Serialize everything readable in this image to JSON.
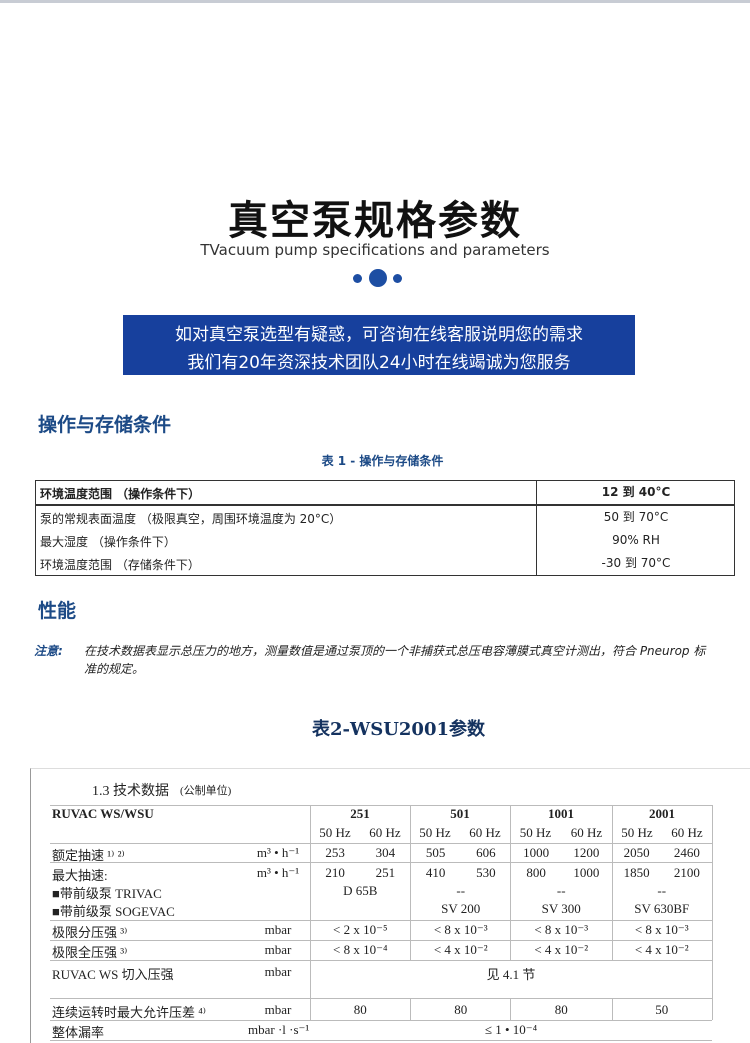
{
  "header": {
    "title": "真空泵规格参数",
    "subtitle": "TVacuum pump specifications and parameters"
  },
  "banner": {
    "lines": [
      "如对真空泵选型有疑惑，可咨询在线客服说明您的需求",
      "我们有20年资深技术团队24小时在线竭诚为您服务"
    ]
  },
  "section1": {
    "heading": "操作与存储条件",
    "table_caption": "表 1 - 操作与存储条件",
    "rows": [
      [
        "环境温度范围 （操作条件下）",
        "12 到 40°C"
      ],
      [
        "泵的常规表面温度 （极限真空，周围环境温度为 20°C）",
        "50 到 70°C"
      ],
      [
        "最大湿度 （操作条件下）",
        "90% RH"
      ],
      [
        "环境温度范围 （存储条件下）",
        "-30 到 70°C"
      ]
    ]
  },
  "section2": {
    "heading": "性能",
    "note_label": "注意:",
    "note_text": "在技术数据表显示总压力的地方，测量数值是通过泵顶的一个非捕获式总压电容薄膜式真空计测出，符合 Pneurop 标准的规定。"
  },
  "table2": {
    "title": "表2-WSU2001参数",
    "heading": "1.3  技术数据",
    "heading_note": "(公制单位)",
    "model_label": "RUVAC WS/WSU",
    "models": [
      "251",
      "501",
      "1001",
      "2001"
    ],
    "freqs": [
      "50 Hz",
      "60 Hz"
    ],
    "rows": [
      {
        "label": "额定抽速 ¹⁾ ²⁾",
        "unit": "m³ • h⁻¹",
        "cells": [
          "253",
          "304",
          "505",
          "606",
          "1000",
          "1200",
          "2050",
          "2460"
        ]
      },
      {
        "label": "最大抽速:",
        "unit": "m³ • h⁻¹",
        "cells": [
          "210",
          "251",
          "410",
          "530",
          "800",
          "1000",
          "1850",
          "2100"
        ]
      },
      {
        "label": "■带前级泵 TRIVAC",
        "unit": null,
        "cells": [
          "D 65B",
          "--",
          "--",
          "--"
        ]
      },
      {
        "label": "■带前级泵 SOGEVAC",
        "unit": null,
        "cells": [
          null,
          "SV 200",
          "SV 300",
          "SV 630BF"
        ]
      },
      {
        "label": "极限分压强 ³⁾",
        "unit": "mbar",
        "cells": [
          "< 2 x 10⁻⁵",
          "< 8 x 10⁻³",
          "< 8 x 10⁻³",
          "< 8 x 10⁻³"
        ]
      },
      {
        "label": "极限全压强 ³⁾",
        "unit": "mbar",
        "cells": [
          "< 8 x 10⁻⁴",
          "< 4 x 10⁻²",
          "< 4 x 10⁻²",
          "< 4 x 10⁻²"
        ]
      },
      {
        "label": "RUVAC WS 切入压强",
        "unit": "mbar",
        "cells": [
          "见 4.1 节"
        ]
      },
      {
        "label": "连续运转时最大允许压差 ⁴⁾",
        "unit": "mbar",
        "cells": [
          "80",
          "80",
          "80",
          "50"
        ]
      },
      {
        "label": "整体漏率",
        "unit": "mbar ·l ·s⁻¹",
        "cells": [
          "≤ 1 • 10⁻⁴"
        ]
      }
    ]
  }
}
